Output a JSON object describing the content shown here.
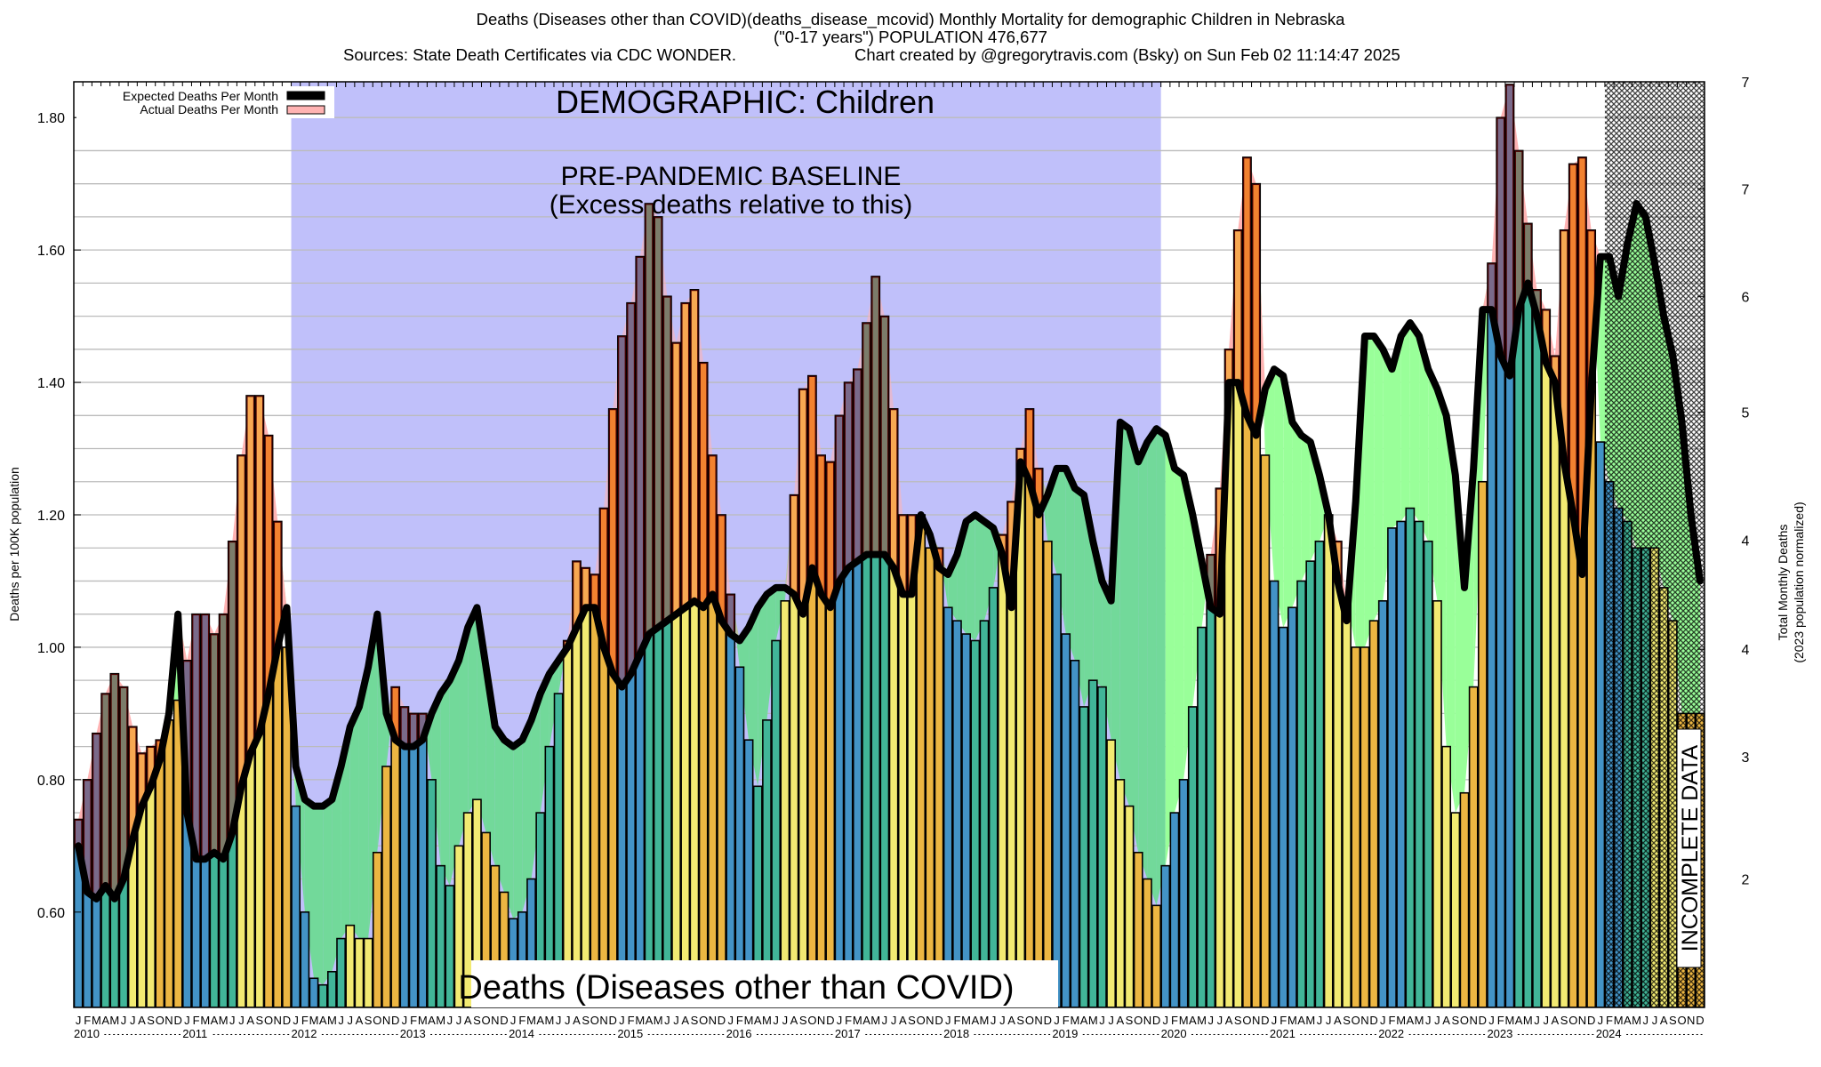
{
  "header": {
    "title_line1": "Deaths (Diseases other than COVID)(deaths_disease_mcovid) Monthly Mortality for demographic Children in Nebraska",
    "title_line2": "(\"0-17 years\") POPULATION 476,677",
    "sources": "Sources: State Death Certificates via CDC WONDER.",
    "credit": "Chart created by @gregorytravis.com (Bsky) on Sun Feb 02 11:14:47 2025"
  },
  "colors": {
    "baseline_region": "#c0c0fa",
    "expected_fill_baseline": "#72d99a",
    "expected_fill_post": "#99ff99",
    "excess_fill": "#ffb3b3",
    "expected_line": "#000000",
    "season_jfm": "#4393c6",
    "season_amj": "#41b598",
    "season_jas": "#f2ea72",
    "season_ond": "#ecb642",
    "excess_jfm": "#7a6a8a",
    "excess_amj": "#7c7c6a",
    "excess_jas": "#f7a852",
    "excess_ond": "#f28230",
    "grid": "#bbbbbb"
  },
  "chart_data": {
    "type": "bar",
    "title": "Deaths (Diseases other than COVID)(deaths_disease_mcovid) Monthly Mortality for demographic Children in Nebraska",
    "subtitle": "(\"0-17 years\") POPULATION 476,677",
    "ylabel": "Deaths per 100K population",
    "y2label_line1": "Total Monthly Deaths",
    "y2label_line2": "(2023 population normalized)",
    "ylim": [
      0.456,
      1.854
    ],
    "yticks": [
      "0.60",
      "0.80",
      "1.00",
      "1.20",
      "1.40",
      "1.60",
      "1.80"
    ],
    "ytick_values": [
      0.6,
      0.8,
      1.0,
      1.2,
      1.4,
      1.6,
      1.8
    ],
    "y2ticks": [
      "7",
      "7",
      "6",
      "5",
      "4",
      "4",
      "3",
      "2"
    ],
    "y2tick_values": [
      1.854,
      1.692,
      1.53,
      1.355,
      1.162,
      0.997,
      0.835,
      0.65
    ],
    "grid": true,
    "month_labels": [
      "J",
      "F",
      "M",
      "A",
      "M",
      "J",
      "J",
      "A",
      "S",
      "O",
      "N",
      "D"
    ],
    "years": [
      "2010",
      "2011",
      "2012",
      "2013",
      "2014",
      "2015",
      "2016",
      "2017",
      "2018",
      "2019",
      "2020",
      "2021",
      "2022",
      "2023",
      "2024"
    ],
    "legend": {
      "placement": "top-left",
      "entries": [
        "Expected Deaths Per Month",
        "Actual Deaths Per Month"
      ]
    },
    "annotations": {
      "demographic": "DEMOGRAPHIC: Children",
      "baseline_line1": "PRE-PANDEMIC BASELINE",
      "baseline_line2": "(Excess deaths relative to this)",
      "bottom_label": "Deaths (Diseases other than COVID)",
      "incomplete": "INCOMPLETE DATA"
    },
    "baseline_period": {
      "start": "2012-01",
      "end": "2019-12"
    },
    "incomplete_period": {
      "start": "2024-02",
      "end": "2024-12"
    },
    "series": [
      {
        "name": "Actual Deaths Per Month",
        "values": [
          0.74,
          0.8,
          0.87,
          0.93,
          0.96,
          0.94,
          0.88,
          0.84,
          0.85,
          0.86,
          0.89,
          0.92,
          0.98,
          1.05,
          1.05,
          1.02,
          1.05,
          1.16,
          1.29,
          1.38,
          1.38,
          1.32,
          1.19,
          1.0,
          0.76,
          0.6,
          0.5,
          0.49,
          0.51,
          0.56,
          0.58,
          0.56,
          0.56,
          0.69,
          0.82,
          0.94,
          0.91,
          0.9,
          0.9,
          0.8,
          0.67,
          0.64,
          0.7,
          0.75,
          0.77,
          0.72,
          0.67,
          0.63,
          0.59,
          0.6,
          0.65,
          0.75,
          0.85,
          0.93,
          1.01,
          1.13,
          1.12,
          1.11,
          1.21,
          1.36,
          1.47,
          1.52,
          1.59,
          1.67,
          1.65,
          1.53,
          1.46,
          1.52,
          1.54,
          1.43,
          1.29,
          1.2,
          1.08,
          0.97,
          0.86,
          0.79,
          0.89,
          1.01,
          1.07,
          1.23,
          1.39,
          1.41,
          1.29,
          1.28,
          1.35,
          1.4,
          1.42,
          1.49,
          1.56,
          1.5,
          1.36,
          1.2,
          1.2,
          1.2,
          1.15,
          1.15,
          1.06,
          1.04,
          1.02,
          1.01,
          1.04,
          1.09,
          1.17,
          1.22,
          1.3,
          1.36,
          1.27,
          1.16,
          1.11,
          1.02,
          0.98,
          0.91,
          0.95,
          0.94,
          0.86,
          0.8,
          0.76,
          0.69,
          0.65,
          0.61,
          0.67,
          0.75,
          0.8,
          0.91,
          1.03,
          1.14,
          1.24,
          1.45,
          1.63,
          1.74,
          1.7,
          1.29,
          1.1,
          1.03,
          1.06,
          1.1,
          1.13,
          1.16,
          1.2,
          1.16,
          1.07,
          1.0,
          1.0,
          1.04,
          1.07,
          1.18,
          1.19,
          1.21,
          1.19,
          1.16,
          1.07,
          0.85,
          0.75,
          0.78,
          0.94,
          1.25,
          1.58,
          1.8,
          1.85,
          1.75,
          1.64,
          1.54,
          1.51,
          1.44,
          1.63,
          1.73,
          1.74,
          1.63,
          1.31,
          1.25,
          1.21,
          1.19,
          1.15,
          1.15,
          1.15,
          1.09,
          1.04,
          0.9,
          0.9,
          0.9
        ]
      },
      {
        "name": "Expected Deaths Per Month",
        "values": [
          0.7,
          0.63,
          0.62,
          0.64,
          0.62,
          0.65,
          0.71,
          0.76,
          0.79,
          0.83,
          0.9,
          1.05,
          0.75,
          0.68,
          0.68,
          0.69,
          0.68,
          0.72,
          0.79,
          0.84,
          0.87,
          0.93,
          1.0,
          1.06,
          0.82,
          0.77,
          0.76,
          0.76,
          0.77,
          0.82,
          0.88,
          0.91,
          0.97,
          1.05,
          0.9,
          0.86,
          0.85,
          0.85,
          0.86,
          0.9,
          0.93,
          0.95,
          0.98,
          1.03,
          1.06,
          0.97,
          0.88,
          0.86,
          0.85,
          0.86,
          0.89,
          0.93,
          0.96,
          0.98,
          1.0,
          1.03,
          1.06,
          1.06,
          1.0,
          0.96,
          0.94,
          0.96,
          0.99,
          1.02,
          1.03,
          1.04,
          1.05,
          1.06,
          1.07,
          1.06,
          1.08,
          1.04,
          1.02,
          1.01,
          1.03,
          1.06,
          1.08,
          1.09,
          1.09,
          1.08,
          1.05,
          1.12,
          1.08,
          1.06,
          1.1,
          1.12,
          1.13,
          1.14,
          1.14,
          1.14,
          1.12,
          1.08,
          1.08,
          1.2,
          1.17,
          1.12,
          1.11,
          1.14,
          1.19,
          1.2,
          1.19,
          1.18,
          1.14,
          1.06,
          1.28,
          1.25,
          1.2,
          1.23,
          1.27,
          1.27,
          1.24,
          1.23,
          1.16,
          1.1,
          1.07,
          1.34,
          1.33,
          1.28,
          1.31,
          1.33,
          1.32,
          1.27,
          1.26,
          1.2,
          1.13,
          1.06,
          1.05,
          1.4,
          1.4,
          1.35,
          1.32,
          1.39,
          1.42,
          1.41,
          1.34,
          1.32,
          1.31,
          1.26,
          1.2,
          1.1,
          1.04,
          1.22,
          1.47,
          1.47,
          1.45,
          1.42,
          1.47,
          1.49,
          1.47,
          1.42,
          1.39,
          1.35,
          1.26,
          1.09,
          1.27,
          1.51,
          1.51,
          1.44,
          1.41,
          1.51,
          1.55,
          1.5,
          1.43,
          1.4,
          1.28,
          1.2,
          1.11,
          1.39,
          1.59,
          1.59,
          1.53,
          1.61,
          1.67,
          1.65,
          1.58,
          1.5,
          1.44,
          1.34,
          1.2,
          1.1
        ]
      }
    ]
  }
}
